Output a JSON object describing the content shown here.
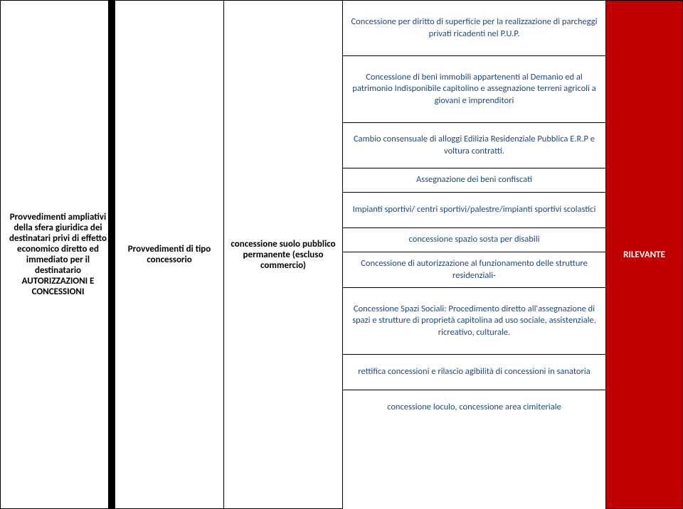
{
  "col1": {
    "text": "Provvedimenti ampliativi della sfera giuridica dei destinatari privi di effetto economico diretto ed immediato per il destinatario AUTORIZZAZIONI E CONCESSIONI"
  },
  "col2": {
    "text": "Provvedimenti di tipo concessorio"
  },
  "col3": {
    "text": "concessione suolo pubblico permanente (escluso commercio)"
  },
  "col5": {
    "text": "RILEVANTE"
  },
  "cells": [
    "Concessione per diritto di superficie per la realizzazione di parcheggi privati ricadenti nel P.U.P.",
    "Concessione di beni immobili appartenenti al Demanio ed al patrimonio Indisponibile capitolino e assegnazione terreni agricoli a giovani e imprenditori",
    "Cambio consensuale di alloggi Edilizia Residenziale Pubblica E.R.P e voltura contratti.",
    "Assegnazione dei beni confiscati",
    "Impianti sportivi/ centri sportivi/palestre/impianti sportivi scolastici",
    "concessione spazio sosta per disabili",
    "Concessione di autorizzazione al funzionamento delle strutture residenziali-",
    "Concessione Spazi Sociali: Procedimento diretto all'assegnazione di spazi e strutture di proprietà capitolina ad uso sociale, assistenziale, ricreativo, culturale.",
    "rettifica concessioni e rilascio agibilità di concessioni in sanatoria",
    "concessione loculo, concessione area cimiteriale"
  ],
  "colors": {
    "red_bg": "#c00000",
    "text_blue": "#1f497d",
    "border": "#000000"
  }
}
